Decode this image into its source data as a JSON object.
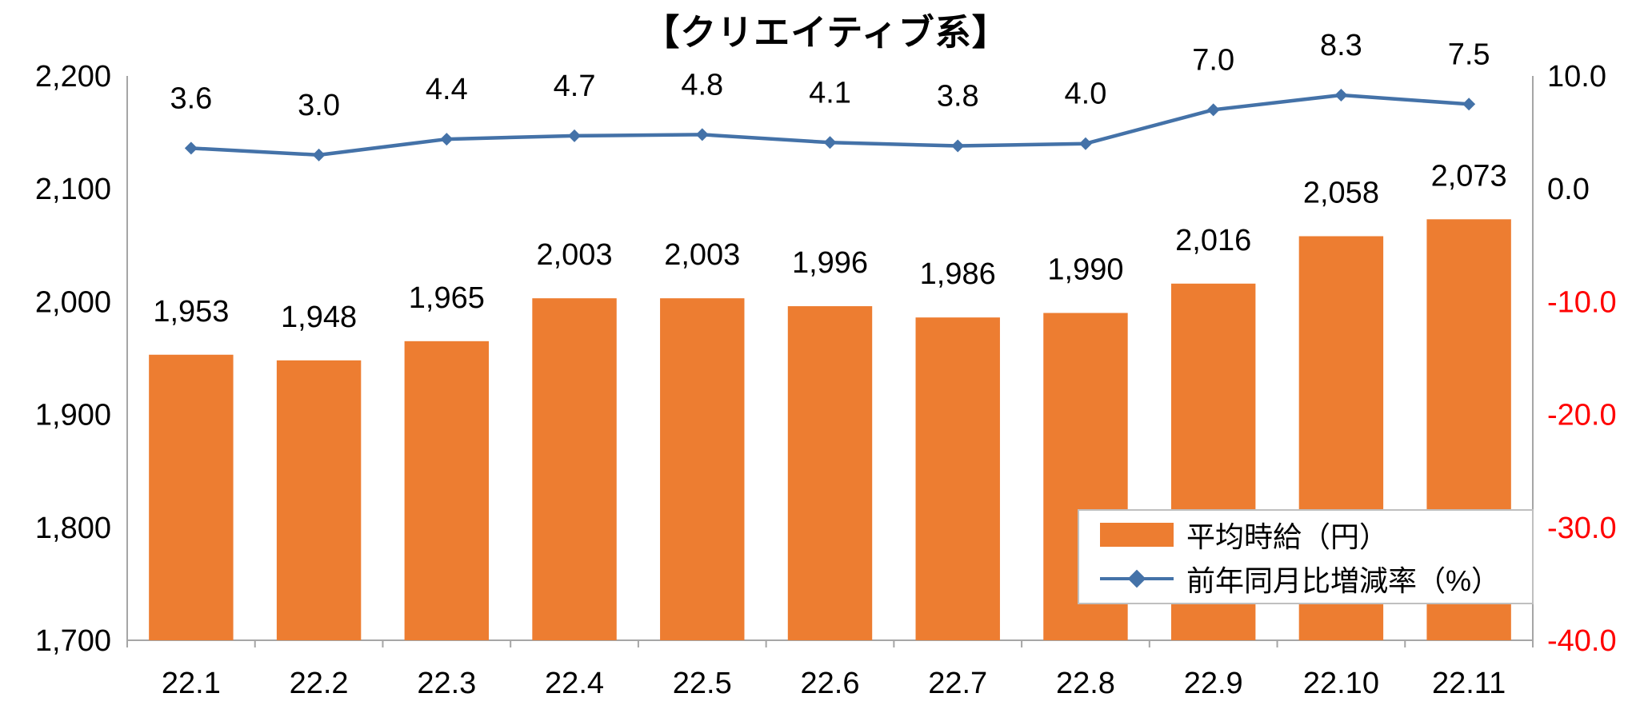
{
  "title": "【クリエイティブ系】",
  "chart_data": {
    "type": "combo-bar-line",
    "categories": [
      "22.1",
      "22.2",
      "22.3",
      "22.4",
      "22.5",
      "22.6",
      "22.7",
      "22.8",
      "22.9",
      "22.10",
      "22.11"
    ],
    "series": [
      {
        "name": "平均時給（円）",
        "type": "bar",
        "axis": "left",
        "color": "#ED7D31",
        "values": [
          1953,
          1948,
          1965,
          2003,
          2003,
          1996,
          1986,
          1990,
          2016,
          2058,
          2073
        ],
        "labels": [
          "1,953",
          "1,948",
          "1,965",
          "2,003",
          "2,003",
          "1,996",
          "1,986",
          "1,990",
          "2,016",
          "2,058",
          "2,073"
        ]
      },
      {
        "name": "前年同月比増減率（%）",
        "type": "line",
        "axis": "right",
        "color": "#4472A8",
        "values": [
          3.6,
          3.0,
          4.4,
          4.7,
          4.8,
          4.1,
          3.8,
          4.0,
          7.0,
          8.3,
          7.5
        ],
        "labels": [
          "3.6",
          "3.0",
          "4.4",
          "4.7",
          "4.8",
          "4.1",
          "3.8",
          "4.0",
          "7.0",
          "8.3",
          "7.5"
        ]
      }
    ],
    "left_axis": {
      "min": 1700,
      "max": 2200,
      "ticks": [
        {
          "label": "2,200",
          "value": 2200
        },
        {
          "label": "2,100",
          "value": 2100
        },
        {
          "label": "2,000",
          "value": 2000
        },
        {
          "label": "1,900",
          "value": 1900
        },
        {
          "label": "1,800",
          "value": 1800
        },
        {
          "label": "1,700",
          "value": 1700
        }
      ]
    },
    "right_axis": {
      "min": -40,
      "max": 10,
      "ticks": [
        {
          "label": "10.0",
          "value": 10,
          "color": "#000000"
        },
        {
          "label": "0.0",
          "value": 0,
          "color": "#000000"
        },
        {
          "label": "-10.0",
          "value": -10,
          "color": "#FF0000"
        },
        {
          "label": "-20.0",
          "value": -20,
          "color": "#FF0000"
        },
        {
          "label": "-30.0",
          "value": -30,
          "color": "#FF0000"
        },
        {
          "label": "-40.0",
          "value": -40,
          "color": "#FF0000"
        }
      ]
    },
    "legend": {
      "position": "bottom-right-overlay",
      "items": [
        {
          "label": "平均時給（円）",
          "marker": "bar",
          "color": "#ED7D31"
        },
        {
          "label": "前年同月比増減率（%）",
          "marker": "line-diamond",
          "color": "#4472A8"
        }
      ]
    },
    "grid": false,
    "label_color": "#000000",
    "axis_line_color": "#A6A6A6"
  }
}
